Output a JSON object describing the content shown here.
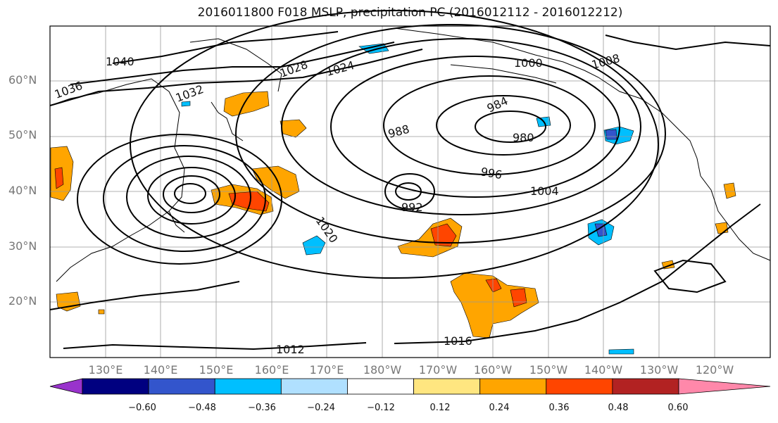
{
  "title": "2016011800 F018 MSLP, precipitation PC (2016012112 - 2016012212)",
  "lat_labels": [
    "60°N",
    "50°N",
    "40°N",
    "30°N",
    "20°N"
  ],
  "lon_labels": [
    "130°E",
    "140°E",
    "150°E",
    "160°E",
    "170°E",
    "180°W",
    "170°W",
    "160°W",
    "150°W",
    "140°W",
    "130°W",
    "120°W"
  ],
  "colorbar": {
    "colors": [
      "#9933cc",
      "#000080",
      "#3355cc",
      "#00bfff",
      "#b0e0ff",
      "#ffffff",
      "#ffe680",
      "#ffa500",
      "#ff4500",
      "#b22222",
      "#ff88aa"
    ],
    "labels": [
      "−0.60",
      "−0.48",
      "−0.36",
      "−0.24",
      "−0.12",
      "0.12",
      "0.24",
      "0.36",
      "0.48",
      "0.60"
    ]
  },
  "contour_labels": [
    "1040",
    "1036",
    "1032",
    "1028",
    "1024",
    "1020",
    "1016",
    "1012",
    "1008",
    "1004",
    "1000",
    "996",
    "992",
    "988",
    "984",
    "980"
  ]
}
